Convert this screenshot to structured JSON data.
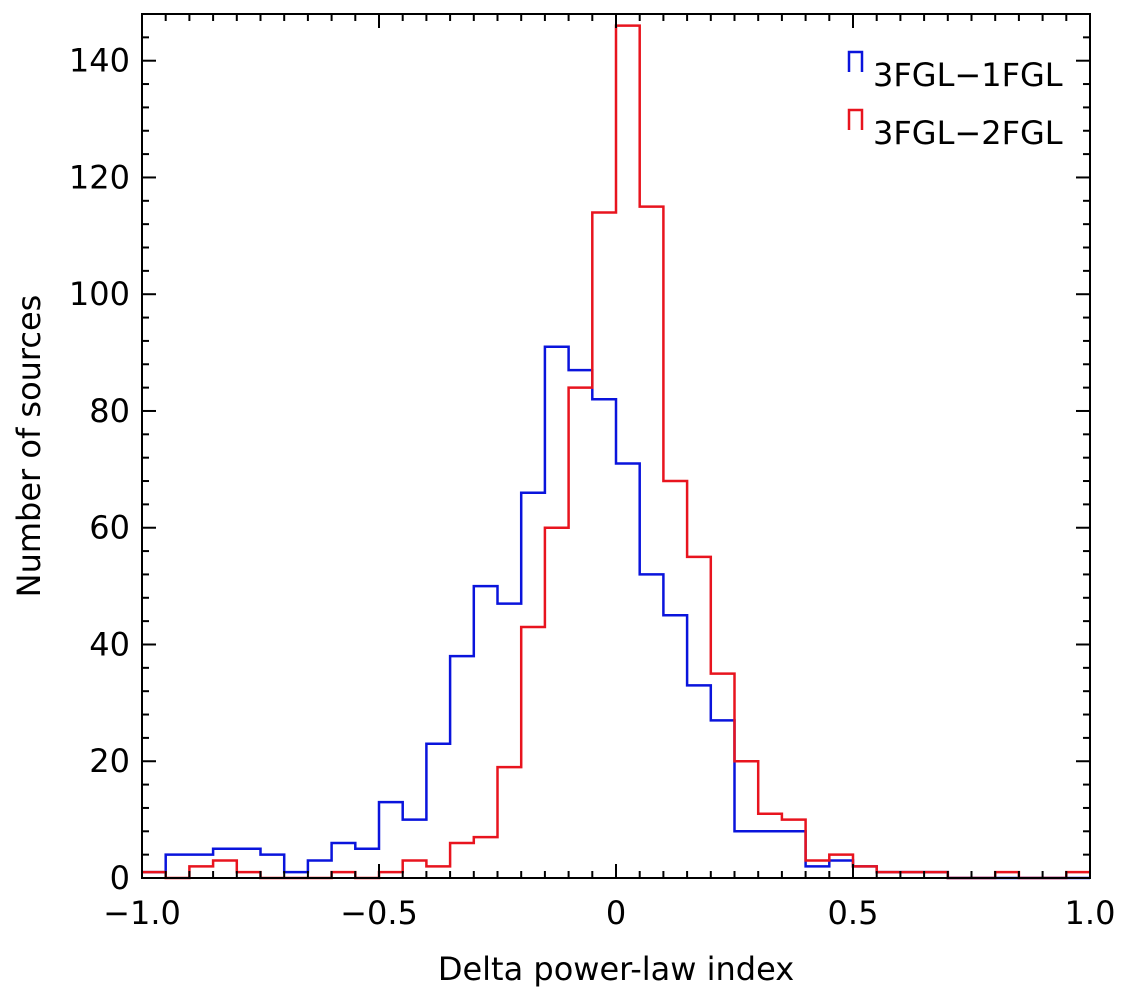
{
  "chart_data": {
    "type": "histogram",
    "title": "",
    "xlabel": "Delta power-law index",
    "ylabel": "Number of sources",
    "xlim": [
      -1.0,
      1.0
    ],
    "ylim": [
      0,
      148
    ],
    "x_ticks": [
      -1.0,
      -0.5,
      0,
      0.5,
      1.0
    ],
    "x_tick_labels": [
      "−1.0",
      "−0.5",
      "0",
      "0.5",
      "1.0"
    ],
    "y_ticks": [
      0,
      20,
      40,
      60,
      80,
      100,
      120,
      140
    ],
    "y_tick_labels": [
      "0",
      "20",
      "40",
      "60",
      "80",
      "100",
      "120",
      "140"
    ],
    "grid": false,
    "legend_position": "top-right",
    "bin_edges": [
      -1.0,
      -0.95,
      -0.9,
      -0.85,
      -0.8,
      -0.75,
      -0.7,
      -0.65,
      -0.6,
      -0.55,
      -0.5,
      -0.45,
      -0.4,
      -0.35,
      -0.3,
      -0.25,
      -0.2,
      -0.15,
      -0.1,
      -0.05,
      0.0,
      0.05,
      0.1,
      0.15,
      0.2,
      0.25,
      0.3,
      0.35,
      0.4,
      0.45,
      0.5,
      0.55,
      0.6,
      0.65,
      0.7,
      0.75,
      0.8,
      0.85,
      0.9,
      0.95,
      1.0
    ],
    "series": [
      {
        "name": "3FGL−1FGL",
        "color": "#0a14dc",
        "values": [
          1,
          4,
          4,
          5,
          5,
          4,
          1,
          3,
          6,
          5,
          13,
          10,
          23,
          38,
          50,
          47,
          66,
          91,
          87,
          82,
          71,
          52,
          45,
          33,
          27,
          8,
          8,
          8,
          2,
          3,
          2,
          1,
          1,
          1,
          0,
          0,
          0,
          0,
          0,
          0
        ]
      },
      {
        "name": "3FGL−2FGL",
        "color": "#e8141e",
        "values": [
          1,
          0,
          2,
          3,
          1,
          0,
          0,
          0,
          1,
          0,
          1,
          3,
          2,
          6,
          7,
          19,
          43,
          60,
          84,
          114,
          146,
          115,
          68,
          55,
          35,
          20,
          11,
          10,
          3,
          4,
          2,
          1,
          1,
          1,
          0,
          0,
          1,
          0,
          0,
          1
        ]
      }
    ]
  }
}
